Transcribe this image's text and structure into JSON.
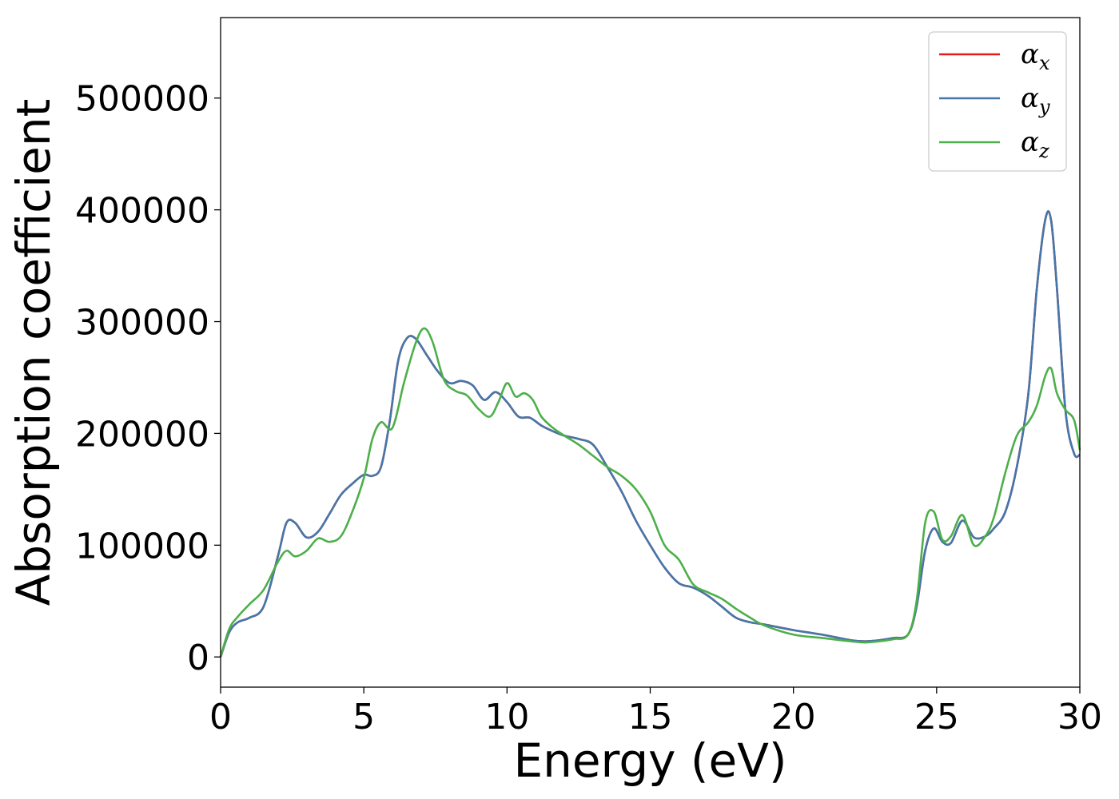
{
  "chart_data": {
    "type": "line",
    "title": "",
    "xlabel": "Energy (eV)",
    "ylabel": "Absorption coefficient",
    "xlim": [
      0,
      30
    ],
    "ylim": [
      -27000,
      572000
    ],
    "xticks": [
      0,
      5,
      10,
      15,
      20,
      25,
      30
    ],
    "xtick_labels": [
      "0",
      "5",
      "10",
      "15",
      "20",
      "25",
      "30"
    ],
    "yticks": [
      0,
      100000,
      200000,
      300000,
      400000,
      500000
    ],
    "ytick_labels": [
      "0",
      "100000",
      "200000",
      "300000",
      "400000",
      "500000"
    ],
    "grid": false,
    "legend_position": "top-right",
    "series": [
      {
        "name": "α",
        "sub": "x",
        "color": "#e41a1c",
        "x": [
          0,
          0.3,
          0.6,
          1.0,
          1.5,
          2.0,
          2.3,
          2.6,
          3.0,
          3.4,
          3.8,
          4.2,
          4.6,
          5.0,
          5.3,
          5.6,
          5.9,
          6.2,
          6.5,
          6.8,
          7.2,
          7.6,
          8.0,
          8.4,
          8.8,
          9.2,
          9.6,
          10.0,
          10.4,
          10.8,
          11.2,
          11.6,
          12.0,
          12.5,
          13.0,
          13.5,
          14.0,
          14.5,
          15.0,
          15.5,
          16.0,
          16.5,
          17.0,
          17.5,
          18.0,
          18.5,
          19.0,
          20.0,
          21.0,
          22.0,
          22.5,
          23.0,
          23.5,
          24.0,
          24.3,
          24.6,
          24.9,
          25.2,
          25.5,
          25.9,
          26.3,
          26.7,
          27.0,
          27.4,
          27.8,
          28.2,
          28.5,
          28.8,
          29.0,
          29.2,
          29.5,
          29.8,
          30.0
        ],
        "values": [
          0,
          22000,
          31000,
          35000,
          45000,
          90000,
          120000,
          120000,
          107000,
          112000,
          128000,
          145000,
          155000,
          163000,
          162000,
          170000,
          210000,
          265000,
          285000,
          285000,
          270000,
          255000,
          245000,
          247000,
          243000,
          230000,
          237000,
          228000,
          215000,
          214000,
          207000,
          202000,
          198000,
          195000,
          190000,
          170000,
          148000,
          122000,
          100000,
          80000,
          66000,
          62000,
          55000,
          45000,
          35000,
          31000,
          29000,
          24000,
          20000,
          15000,
          14000,
          15000,
          17000,
          20000,
          45000,
          95000,
          115000,
          103000,
          102000,
          122000,
          107000,
          108000,
          115000,
          130000,
          170000,
          235000,
          330000,
          392000,
          390000,
          330000,
          220000,
          182000,
          181000
        ]
      },
      {
        "name": "α",
        "sub": "y",
        "color": "#4477aa",
        "x": [
          0,
          0.3,
          0.6,
          1.0,
          1.5,
          2.0,
          2.3,
          2.6,
          3.0,
          3.4,
          3.8,
          4.2,
          4.6,
          5.0,
          5.3,
          5.6,
          5.9,
          6.2,
          6.5,
          6.8,
          7.2,
          7.6,
          8.0,
          8.4,
          8.8,
          9.2,
          9.6,
          10.0,
          10.4,
          10.8,
          11.2,
          11.6,
          12.0,
          12.5,
          13.0,
          13.5,
          14.0,
          14.5,
          15.0,
          15.5,
          16.0,
          16.5,
          17.0,
          17.5,
          18.0,
          18.5,
          19.0,
          20.0,
          21.0,
          22.0,
          22.5,
          23.0,
          23.5,
          24.0,
          24.3,
          24.6,
          24.9,
          25.2,
          25.5,
          25.9,
          26.3,
          26.7,
          27.0,
          27.4,
          27.8,
          28.2,
          28.5,
          28.8,
          29.0,
          29.2,
          29.5,
          29.8,
          30.0
        ],
        "values": [
          0,
          22000,
          31000,
          35000,
          45000,
          90000,
          120000,
          120000,
          107000,
          112000,
          128000,
          145000,
          155000,
          163000,
          162000,
          170000,
          210000,
          265000,
          285000,
          285000,
          270000,
          255000,
          245000,
          247000,
          243000,
          230000,
          237000,
          228000,
          215000,
          214000,
          207000,
          202000,
          198000,
          195000,
          190000,
          170000,
          148000,
          122000,
          100000,
          80000,
          66000,
          62000,
          55000,
          45000,
          35000,
          31000,
          29000,
          24000,
          20000,
          15000,
          14000,
          15000,
          17000,
          20000,
          45000,
          95000,
          115000,
          103000,
          102000,
          122000,
          107000,
          108000,
          115000,
          130000,
          170000,
          235000,
          330000,
          392000,
          390000,
          330000,
          220000,
          182000,
          181000
        ]
      },
      {
        "name": "α",
        "sub": "z",
        "color": "#4daf4a",
        "x": [
          0,
          0.3,
          0.6,
          1.0,
          1.5,
          2.0,
          2.3,
          2.6,
          3.0,
          3.4,
          3.8,
          4.2,
          4.6,
          5.0,
          5.3,
          5.6,
          6.0,
          6.4,
          6.8,
          7.1,
          7.4,
          7.8,
          8.2,
          8.6,
          9.0,
          9.4,
          9.7,
          10.0,
          10.3,
          10.6,
          10.9,
          11.2,
          11.6,
          12.0,
          12.5,
          13.0,
          13.5,
          14.0,
          14.5,
          15.0,
          15.5,
          16.0,
          16.5,
          17.0,
          17.5,
          18.0,
          18.5,
          19.0,
          20.0,
          21.0,
          22.0,
          22.5,
          23.0,
          23.5,
          24.0,
          24.3,
          24.6,
          24.9,
          25.2,
          25.5,
          25.9,
          26.3,
          26.7,
          27.0,
          27.4,
          27.8,
          28.2,
          28.5,
          28.8,
          29.0,
          29.2,
          29.5,
          29.8,
          30.0
        ],
        "values": [
          0,
          25000,
          36000,
          47000,
          60000,
          85000,
          95000,
          90000,
          95000,
          106000,
          103000,
          108000,
          130000,
          160000,
          195000,
          210000,
          205000,
          245000,
          280000,
          294000,
          282000,
          248000,
          238000,
          234000,
          222000,
          215000,
          228000,
          245000,
          233000,
          236000,
          230000,
          215000,
          205000,
          198000,
          190000,
          180000,
          170000,
          162000,
          150000,
          130000,
          100000,
          87000,
          65000,
          58000,
          52000,
          43000,
          35000,
          28000,
          20000,
          17000,
          14000,
          13000,
          14000,
          16000,
          20000,
          50000,
          120000,
          130000,
          105000,
          108000,
          127000,
          100000,
          108000,
          125000,
          165000,
          198000,
          210000,
          225000,
          252000,
          258000,
          236000,
          221000,
          212000,
          185000
        ]
      }
    ]
  }
}
